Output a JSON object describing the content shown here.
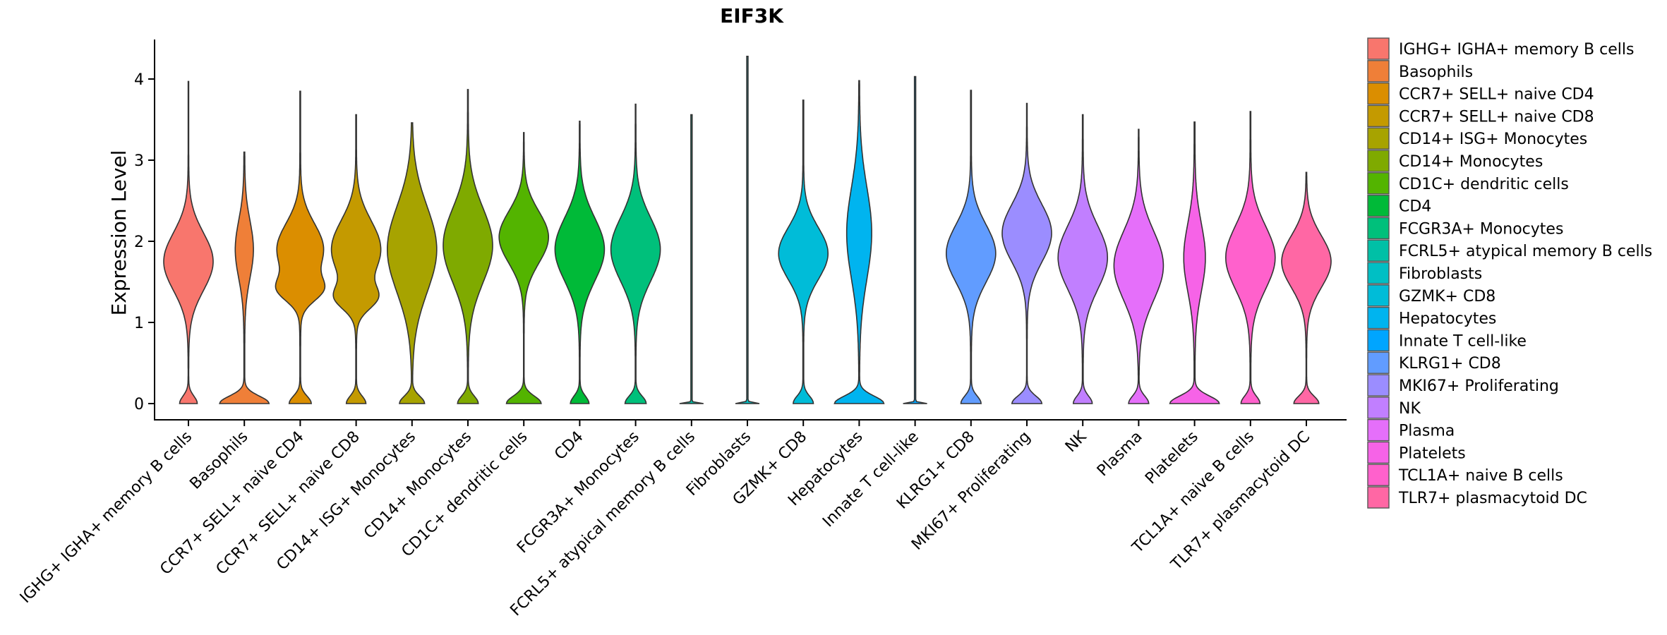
{
  "chart_data": {
    "type": "violin",
    "title": "EIF3K",
    "xlabel": "",
    "ylabel": "Expression Level",
    "ylim": [
      -0.2,
      4.5
    ],
    "yticks": [
      0,
      1,
      2,
      3,
      4
    ],
    "legend_position": "right",
    "categories": [
      {
        "label": " IGHG+ IGHA+ memory B cells",
        "color": "#F8766D",
        "max": 3.97,
        "bottom": 0.35,
        "modes": [
          [
            1.75,
            0.5,
            1.0
          ]
        ]
      },
      {
        "label": "Basophils",
        "color": "#EF7F38",
        "max": 3.1,
        "bottom": 0.7,
        "modes": [
          [
            1.9,
            0.5,
            0.25
          ]
        ]
      },
      {
        "label": "CCR7+ SELL+ naive CD4",
        "color": "#DB8E00",
        "max": 3.85,
        "bottom": 0.35,
        "modes": [
          [
            1.9,
            0.45,
            0.75
          ],
          [
            1.4,
            0.2,
            0.55
          ]
        ]
      },
      {
        "label": "CCR7+ SELL+ naive CD8",
        "color": "#C49A00",
        "max": 3.56,
        "bottom": 0.35,
        "modes": [
          [
            1.9,
            0.5,
            0.9
          ],
          [
            1.3,
            0.2,
            0.6
          ]
        ]
      },
      {
        "label": "CD14+ ISG+ Monocytes",
        "color": "#A7A300",
        "max": 3.46,
        "bottom": 0.5,
        "modes": [
          [
            1.9,
            0.75,
            1.0
          ]
        ]
      },
      {
        "label": "CD14+ Monocytes",
        "color": "#7FAA00",
        "max": 3.87,
        "bottom": 0.35,
        "modes": [
          [
            1.95,
            0.65,
            0.85
          ]
        ]
      },
      {
        "label": "CD1C+ dendritic cells",
        "color": "#53B400",
        "max": 3.34,
        "bottom": 0.7,
        "modes": [
          [
            2.05,
            0.45,
            1.0
          ]
        ]
      },
      {
        "label": "CD4",
        "color": "#00BA38",
        "max": 3.48,
        "bottom": 0.35,
        "modes": [
          [
            1.9,
            0.55,
            0.95
          ]
        ]
      },
      {
        "label": "FCGR3A+ Monocytes",
        "color": "#00C07B",
        "max": 3.69,
        "bottom": 0.4,
        "modes": [
          [
            1.9,
            0.55,
            0.95
          ]
        ]
      },
      {
        "label": "FCRL5+ atypical memory B cells",
        "color": "#00C0A6",
        "max": 3.56,
        "bottom": 0.0,
        "modes": []
      },
      {
        "label": "Fibroblasts",
        "color": "#00BFC4",
        "max": 4.28,
        "bottom": 0.0,
        "modes": []
      },
      {
        "label": "GZMK+ CD8",
        "color": "#00BCD8",
        "max": 3.74,
        "bottom": 0.3,
        "modes": [
          [
            1.85,
            0.45,
            0.75
          ]
        ]
      },
      {
        "label": "Hepatocytes",
        "color": "#00B4EF",
        "max": 3.98,
        "bottom": 0.9,
        "modes": [
          [
            2.1,
            0.8,
            0.45
          ]
        ]
      },
      {
        "label": "Innate T cell-like",
        "color": "#00A5FF",
        "max": 4.03,
        "bottom": 0.0,
        "modes": []
      },
      {
        "label": "KLRG1+ CD8",
        "color": "#619CFF",
        "max": 3.86,
        "bottom": 0.3,
        "modes": [
          [
            1.85,
            0.5,
            0.75
          ]
        ]
      },
      {
        "label": "MKI67+ Proliferating",
        "color": "#9B8DFF",
        "max": 3.7,
        "bottom": 0.6,
        "modes": [
          [
            2.1,
            0.5,
            1.0
          ]
        ]
      },
      {
        "label": "NK",
        "color": "#C17FFF",
        "max": 3.56,
        "bottom": 0.3,
        "modes": [
          [
            1.8,
            0.55,
            0.8
          ]
        ]
      },
      {
        "label": "Plasma",
        "color": "#E56FFA",
        "max": 3.38,
        "bottom": 0.4,
        "modes": [
          [
            1.7,
            0.6,
            1.0
          ]
        ]
      },
      {
        "label": "Platelets",
        "color": "#F663E7",
        "max": 3.47,
        "bottom": 0.7,
        "modes": [
          [
            1.8,
            0.6,
            0.3
          ]
        ]
      },
      {
        "label": "TCL1A+ naive B cells",
        "color": "#FF61CC",
        "max": 3.6,
        "bottom": 0.3,
        "modes": [
          [
            1.8,
            0.55,
            0.8
          ]
        ]
      },
      {
        "label": "TLR7+ plasmacytoid DC",
        "color": "#FF67A4",
        "max": 2.85,
        "bottom": 0.5,
        "modes": [
          [
            1.75,
            0.45,
            1.0
          ]
        ]
      }
    ]
  }
}
